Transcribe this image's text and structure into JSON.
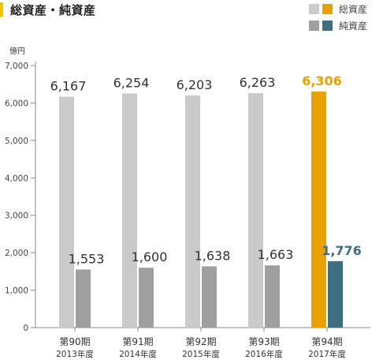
{
  "title": "総資産・純資産",
  "colors": {
    "total_default": "#cacaca",
    "net_default": "#9f9f9f",
    "total_highlight": "#e9a100",
    "net_highlight": "#3f6e80",
    "title_mark": "#f1c400",
    "axis": "#888888",
    "text": "#333333"
  },
  "legend": [
    {
      "label": "総資産",
      "swatches": [
        "#cacaca",
        "#e9a100"
      ]
    },
    {
      "label": "純資産",
      "swatches": [
        "#9f9f9f",
        "#3f6e80"
      ]
    }
  ],
  "chart_data": {
    "type": "bar",
    "title": "総資産・純資産",
    "unit_label": "億円",
    "ylim": [
      0,
      7000
    ],
    "yticks": [
      0,
      1000,
      2000,
      3000,
      4000,
      5000,
      6000,
      7000
    ],
    "ytick_labels": [
      "0",
      "1,000",
      "2,000",
      "3,000",
      "4,000",
      "5,000",
      "6,000",
      "7,000"
    ],
    "categories": [
      "第90期",
      "第91期",
      "第92期",
      "第93期",
      "第94期"
    ],
    "category_sublabels": [
      "2013年度",
      "2014年度",
      "2015年度",
      "2016年度",
      "2017年度"
    ],
    "highlight_index": 4,
    "series": [
      {
        "name": "総資産",
        "values": [
          6167,
          6254,
          6203,
          6263,
          6306
        ],
        "labels": [
          "6,167",
          "6,254",
          "6,203",
          "6,263",
          "6,306"
        ]
      },
      {
        "name": "純資産",
        "values": [
          1553,
          1600,
          1638,
          1663,
          1776
        ],
        "labels": [
          "1,553",
          "1,600",
          "1,638",
          "1,663",
          "1,776"
        ]
      }
    ],
    "grid": false,
    "legend_position": "top-right"
  }
}
